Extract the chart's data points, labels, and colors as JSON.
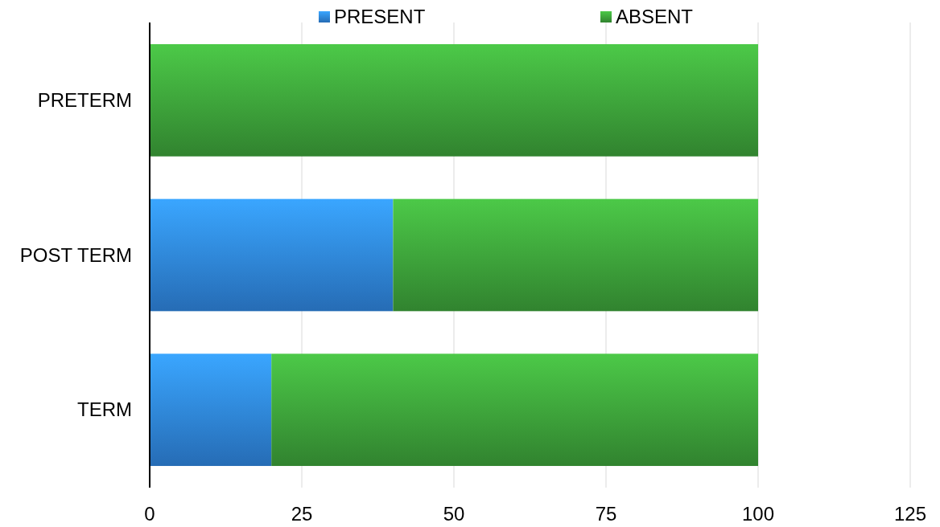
{
  "chart_data": {
    "type": "bar",
    "orientation": "horizontal",
    "stacked": true,
    "categories": [
      "PRETERM",
      "POST TERM",
      "TERM"
    ],
    "series": [
      {
        "name": "PRESENT",
        "color": "#2f86e0",
        "values": [
          0,
          40,
          20
        ]
      },
      {
        "name": "ABSENT",
        "color": "#3da23a",
        "values": [
          100,
          60,
          80
        ]
      }
    ],
    "xlim": [
      0,
      125
    ],
    "xticks": [
      0,
      25,
      50,
      75,
      100,
      125
    ],
    "grid": "x",
    "legend": "top"
  }
}
